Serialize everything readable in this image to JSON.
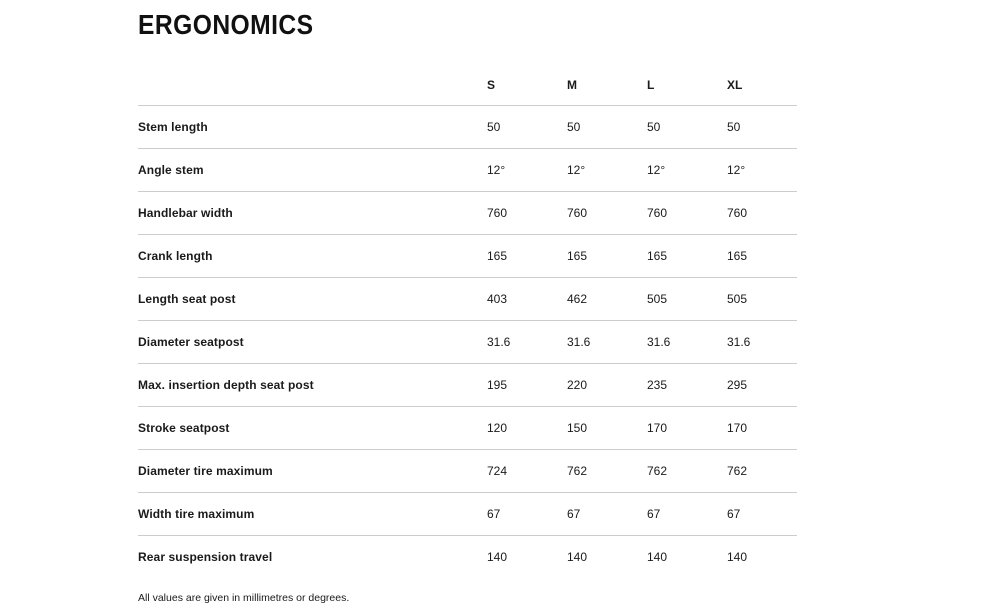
{
  "page": {
    "title": "ERGONOMICS",
    "footnote": "All values are given in millimetres or degrees."
  },
  "table": {
    "columns": [
      "S",
      "M",
      "L",
      "XL"
    ],
    "rows": [
      {
        "label": "Stem length",
        "values": [
          "50",
          "50",
          "50",
          "50"
        ]
      },
      {
        "label": "Angle stem",
        "values": [
          "12°",
          "12°",
          "12°",
          "12°"
        ]
      },
      {
        "label": "Handlebar width",
        "values": [
          "760",
          "760",
          "760",
          "760"
        ]
      },
      {
        "label": "Crank length",
        "values": [
          "165",
          "165",
          "165",
          "165"
        ]
      },
      {
        "label": "Length seat post",
        "values": [
          "403",
          "462",
          "505",
          "505"
        ]
      },
      {
        "label": "Diameter seatpost",
        "values": [
          "31.6",
          "31.6",
          "31.6",
          "31.6"
        ]
      },
      {
        "label": "Max. insertion depth seat post",
        "values": [
          "195",
          "220",
          "235",
          "295"
        ]
      },
      {
        "label": "Stroke seatpost",
        "values": [
          "120",
          "150",
          "170",
          "170"
        ]
      },
      {
        "label": "Diameter tire maximum",
        "values": [
          "724",
          "762",
          "762",
          "762"
        ]
      },
      {
        "label": "Width tire maximum",
        "values": [
          "67",
          "67",
          "67",
          "67"
        ]
      },
      {
        "label": "Rear suspension travel",
        "values": [
          "140",
          "140",
          "140",
          "140"
        ]
      }
    ]
  },
  "colors": {
    "background": "#ffffff",
    "text": "#1a1a1a",
    "title": "#111111",
    "divider": "#cccccc"
  }
}
